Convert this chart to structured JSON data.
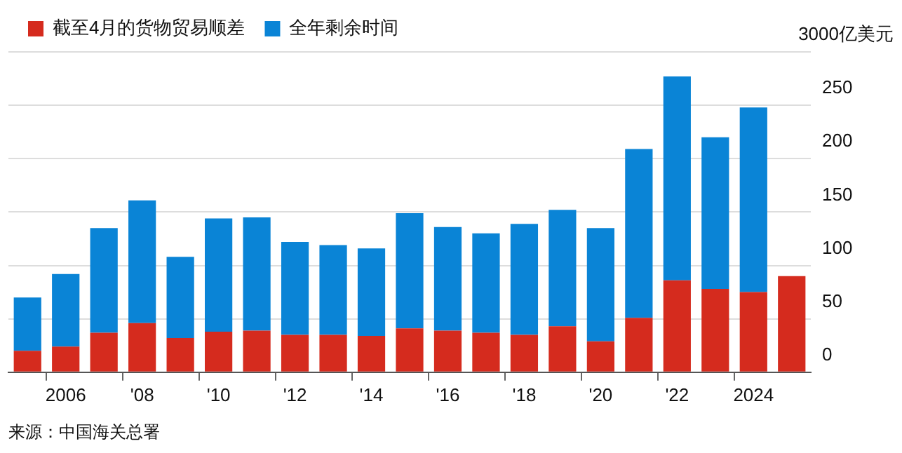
{
  "chart_data": {
    "type": "bar",
    "stacked": true,
    "categories": [
      null,
      "2006",
      null,
      "'08",
      null,
      "'10",
      null,
      "'12",
      null,
      "'14",
      null,
      "'16",
      null,
      "'18",
      null,
      "'20",
      null,
      "'22",
      null,
      "2024",
      null
    ],
    "series": [
      {
        "name": "截至4月的货物贸易顺差",
        "color": "#d52b1e",
        "values": [
          20,
          24,
          37,
          46,
          32,
          38,
          39,
          35,
          35,
          34,
          41,
          39,
          37,
          35,
          43,
          29,
          51,
          86,
          78,
          75,
          90
        ]
      },
      {
        "name": "全年剩余时间",
        "color": "#0a84d6",
        "values": [
          50,
          68,
          98,
          115,
          76,
          106,
          106,
          87,
          84,
          82,
          108,
          97,
          93,
          104,
          109,
          106,
          158,
          191,
          142,
          173,
          null
        ]
      }
    ],
    "ylim": [
      0,
      300
    ],
    "yticks": [
      0,
      50,
      100,
      150,
      200,
      250,
      {
        "value": 300,
        "label": null
      }
    ],
    "ylabel": "3000亿美元",
    "grid": "y",
    "legend": "top left",
    "annotations": [
      "来源：中国海关总署"
    ]
  }
}
